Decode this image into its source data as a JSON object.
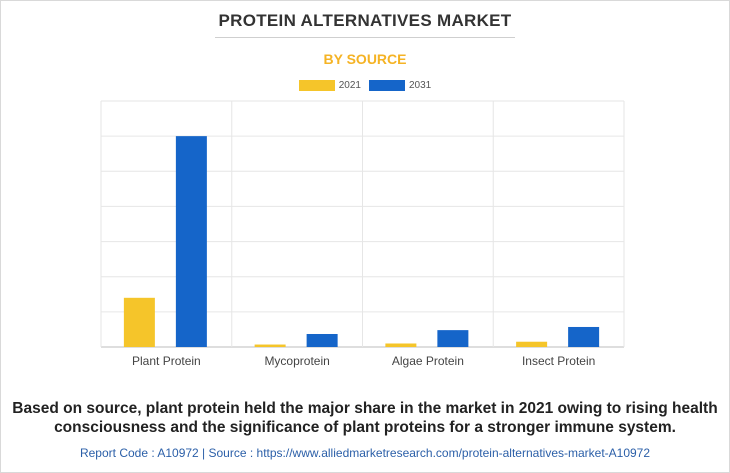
{
  "chart_data": {
    "type": "bar",
    "title": "PROTEIN ALTERNATIVES MARKET",
    "subtitle": "BY SOURCE",
    "categories": [
      "Plant Protein",
      "Mycoprotein",
      "Algae Protein",
      "Insect Protein"
    ],
    "series": [
      {
        "name": "2021",
        "color": "#f5c52a",
        "values": [
          1.4,
          0.07,
          0.1,
          0.15
        ]
      },
      {
        "name": "2031",
        "color": "#1565c9",
        "values": [
          6.0,
          0.37,
          0.48,
          0.57
        ]
      }
    ],
    "ylim": [
      0,
      7
    ],
    "grid": true,
    "legend_position": "top-center",
    "xlabel": "",
    "ylabel": ""
  },
  "description": "Based on source, plant protein held the major share in the market in 2021 owing to rising health consciousness and the significance of plant proteins for a stronger immune system.",
  "footer": "Report Code : A10972  |  Source : https://www.alliedmarketresearch.com/protein-alternatives-market-A10972"
}
